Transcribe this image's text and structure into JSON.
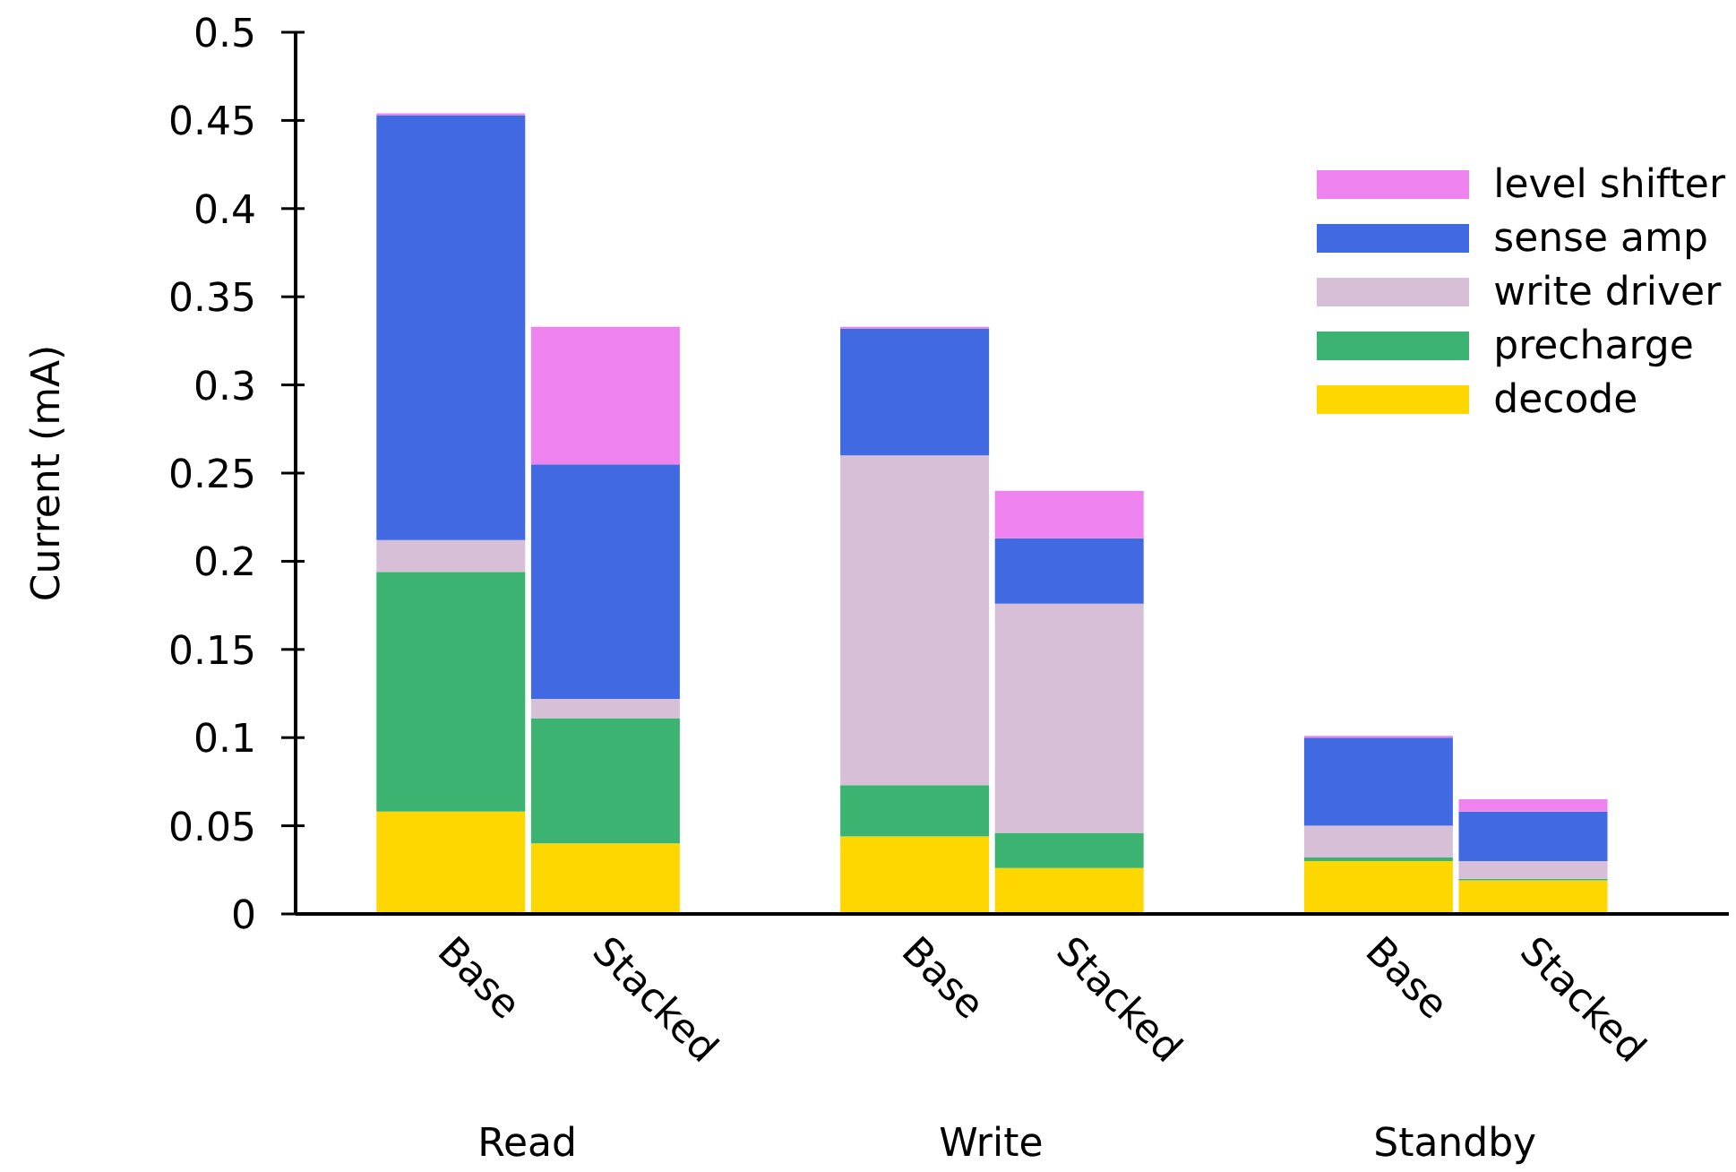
{
  "chart_data": {
    "type": "bar",
    "stacked": true,
    "ylabel": "Current (mA)",
    "categories": [
      "Base",
      "Stacked",
      "Base",
      "Stacked",
      "Base",
      "Stacked"
    ],
    "annotations": [
      "Read",
      "Write",
      "Standby"
    ],
    "series": [
      {
        "name": "decode",
        "color": "#ffd700",
        "values": [
          0.058,
          0.04,
          0.044,
          0.026,
          0.03,
          0.019
        ]
      },
      {
        "name": "precharge",
        "color": "#3cb371",
        "values": [
          0.136,
          0.071,
          0.029,
          0.02,
          0.002,
          0.001
        ]
      },
      {
        "name": "write driver",
        "color": "#d8bfd8",
        "values": [
          0.018,
          0.011,
          0.187,
          0.13,
          0.018,
          0.01
        ]
      },
      {
        "name": "sense amp",
        "color": "#4169e1",
        "values": [
          0.241,
          0.133,
          0.072,
          0.037,
          0.05,
          0.028
        ]
      },
      {
        "name": "level shifter",
        "color": "#ee82ee",
        "values": [
          0.001,
          0.078,
          0.001,
          0.027,
          0.001,
          0.007
        ]
      }
    ],
    "ylim": [
      0,
      0.5
    ],
    "yticks": [
      0,
      0.05,
      0.1,
      0.15,
      0.2,
      0.25,
      0.3,
      0.35,
      0.4,
      0.45,
      0.5
    ],
    "legend": "top right",
    "grid": false
  }
}
